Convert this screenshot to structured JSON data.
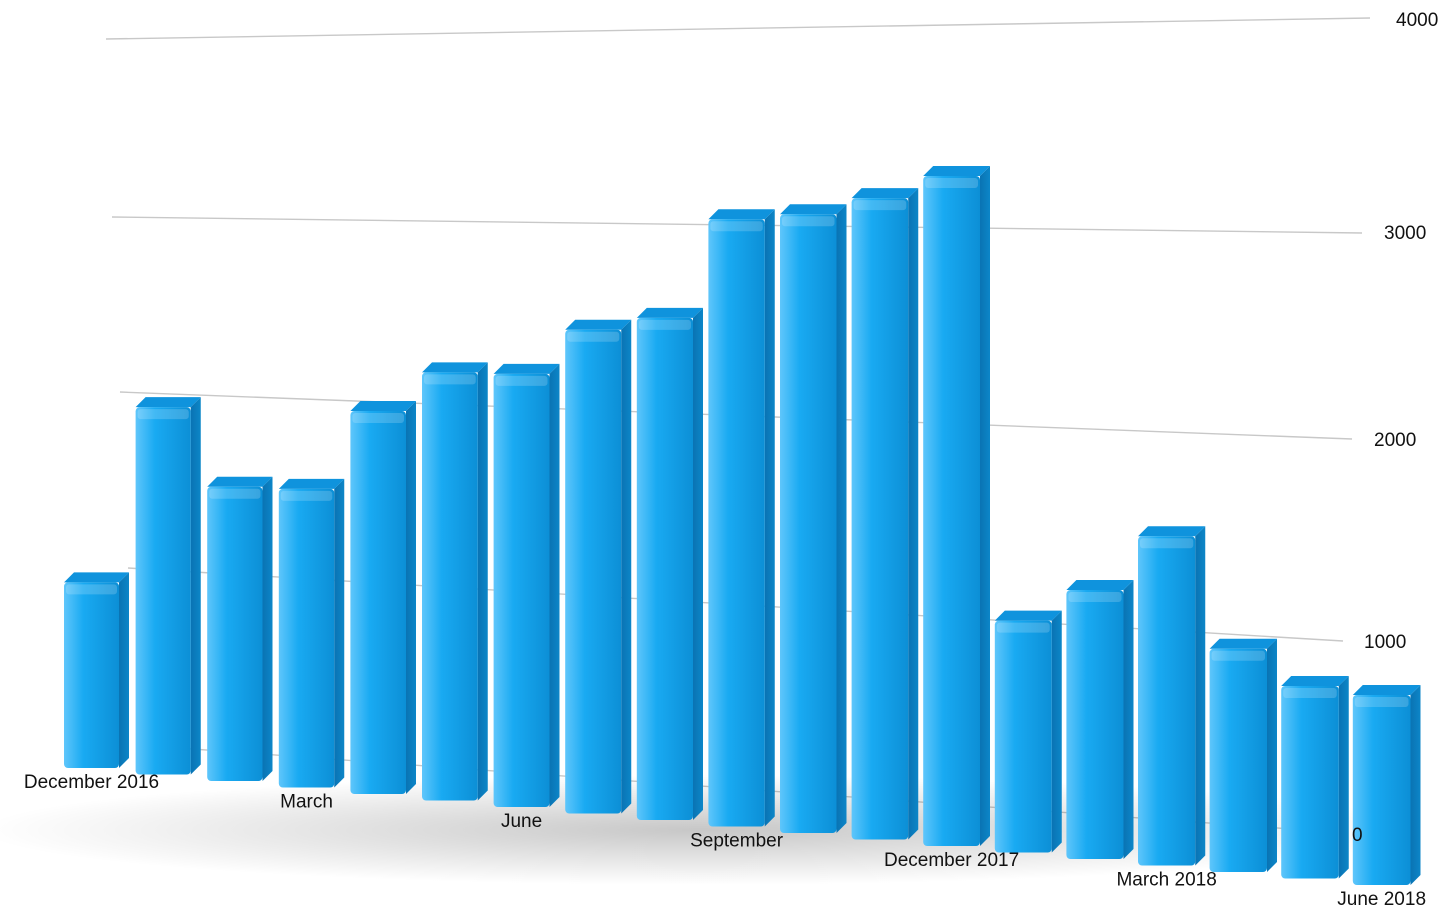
{
  "chart_data": {
    "type": "bar",
    "categories": [
      "December 2016",
      "",
      "",
      "March",
      "",
      "",
      "June",
      "",
      "",
      "September",
      "",
      "",
      "December 2017",
      "",
      "",
      "March 2018",
      "",
      "",
      "June 2018"
    ],
    "values": [
      710,
      1420,
      1150,
      1180,
      1530,
      1730,
      1770,
      2000,
      2100,
      2570,
      2650,
      2780,
      2940,
      1030,
      1210,
      1500,
      1030,
      900,
      900
    ],
    "ylim": [
      0,
      4000
    ],
    "yticks": [
      "0",
      "1000",
      "2000",
      "3000",
      "4000"
    ],
    "bar_color": "#12a7f1",
    "grid": true,
    "legend": "none"
  }
}
